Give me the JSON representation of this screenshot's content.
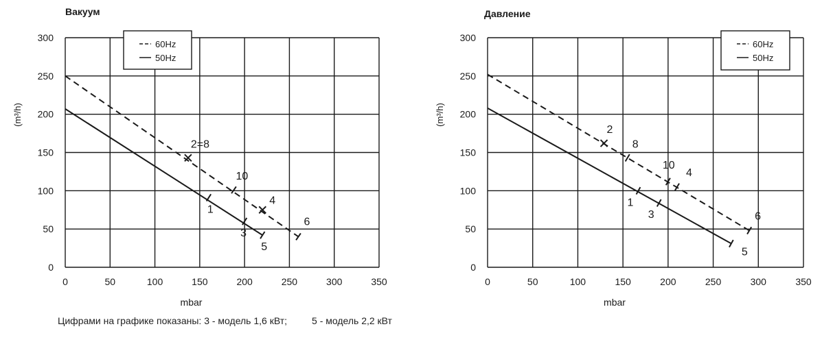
{
  "footnote": {
    "text1": "Цифрами на графике показаны: 3 - модель 1,6 кВт;",
    "text2": "5 - модель 2,2 кВт"
  },
  "chart_data": [
    {
      "type": "line",
      "title": "Вакуум",
      "xlabel": "mbar",
      "ylabel": "(m³/h)",
      "xlim": [
        0,
        350
      ],
      "ylim": [
        0,
        300
      ],
      "xticks": [
        0,
        50,
        100,
        150,
        200,
        250,
        300,
        350
      ],
      "yticks": [
        0,
        50,
        100,
        150,
        200,
        250,
        300
      ],
      "grid": true,
      "legend_position": "top-left",
      "series": [
        {
          "name": "60Hz",
          "dash": true,
          "x": [
            0,
            260
          ],
          "y": [
            250,
            40
          ],
          "end_tick_x": 260,
          "models": [
            {
              "label": "2=8",
              "x": 137,
              "y": 143,
              "tick": "cross"
            },
            {
              "label": "10",
              "x": 188,
              "y": 101,
              "tick": "bar"
            },
            {
              "label": "4",
              "x": 220,
              "y": 75,
              "tick": "cross"
            },
            {
              "label": "6",
              "x": 260,
              "y": 40,
              "tick": "bar"
            }
          ]
        },
        {
          "name": "50Hz",
          "dash": false,
          "x": [
            0,
            220
          ],
          "y": [
            207,
            42
          ],
          "end_tick_x": 220,
          "models": [
            {
              "label": "1",
              "x": 160,
              "y": 91,
              "tick": "bar"
            },
            {
              "label": "3",
              "x": 200,
              "y": 60,
              "tick": "bar"
            },
            {
              "label": "5",
              "x": 220,
              "y": 42,
              "tick": "bar"
            }
          ]
        }
      ]
    },
    {
      "type": "line",
      "title": "Давление",
      "xlabel": "mbar",
      "ylabel": "(m³/h)",
      "xlim": [
        0,
        350
      ],
      "ylim": [
        0,
        300
      ],
      "xticks": [
        0,
        50,
        100,
        150,
        200,
        250,
        300,
        350
      ],
      "yticks": [
        0,
        50,
        100,
        150,
        200,
        250,
        300
      ],
      "grid": true,
      "legend_position": "top-right",
      "series": [
        {
          "name": "60Hz",
          "dash": true,
          "x": [
            0,
            290
          ],
          "y": [
            252,
            48
          ],
          "models": [
            {
              "label": "2",
              "x": 129,
              "y": 162,
              "tick": "cross"
            },
            {
              "label": "8",
              "x": 155,
              "y": 143,
              "tick": "bar"
            },
            {
              "label": "10",
              "x": 200,
              "y": 112,
              "tick": "bar"
            },
            {
              "label": "4",
              "x": 210,
              "y": 105,
              "tick": "bar"
            },
            {
              "label": "6",
              "x": 290,
              "y": 48,
              "tick": "bar"
            }
          ]
        },
        {
          "name": "50Hz",
          "dash": false,
          "x": [
            0,
            270
          ],
          "y": [
            208,
            31
          ],
          "models": [
            {
              "label": "1",
              "x": 167,
              "y": 100,
              "tick": "bar"
            },
            {
              "label": "3",
              "x": 190,
              "y": 84,
              "tick": "bar"
            },
            {
              "label": "5",
              "x": 270,
              "y": 31,
              "tick": "bar"
            }
          ]
        }
      ]
    }
  ]
}
